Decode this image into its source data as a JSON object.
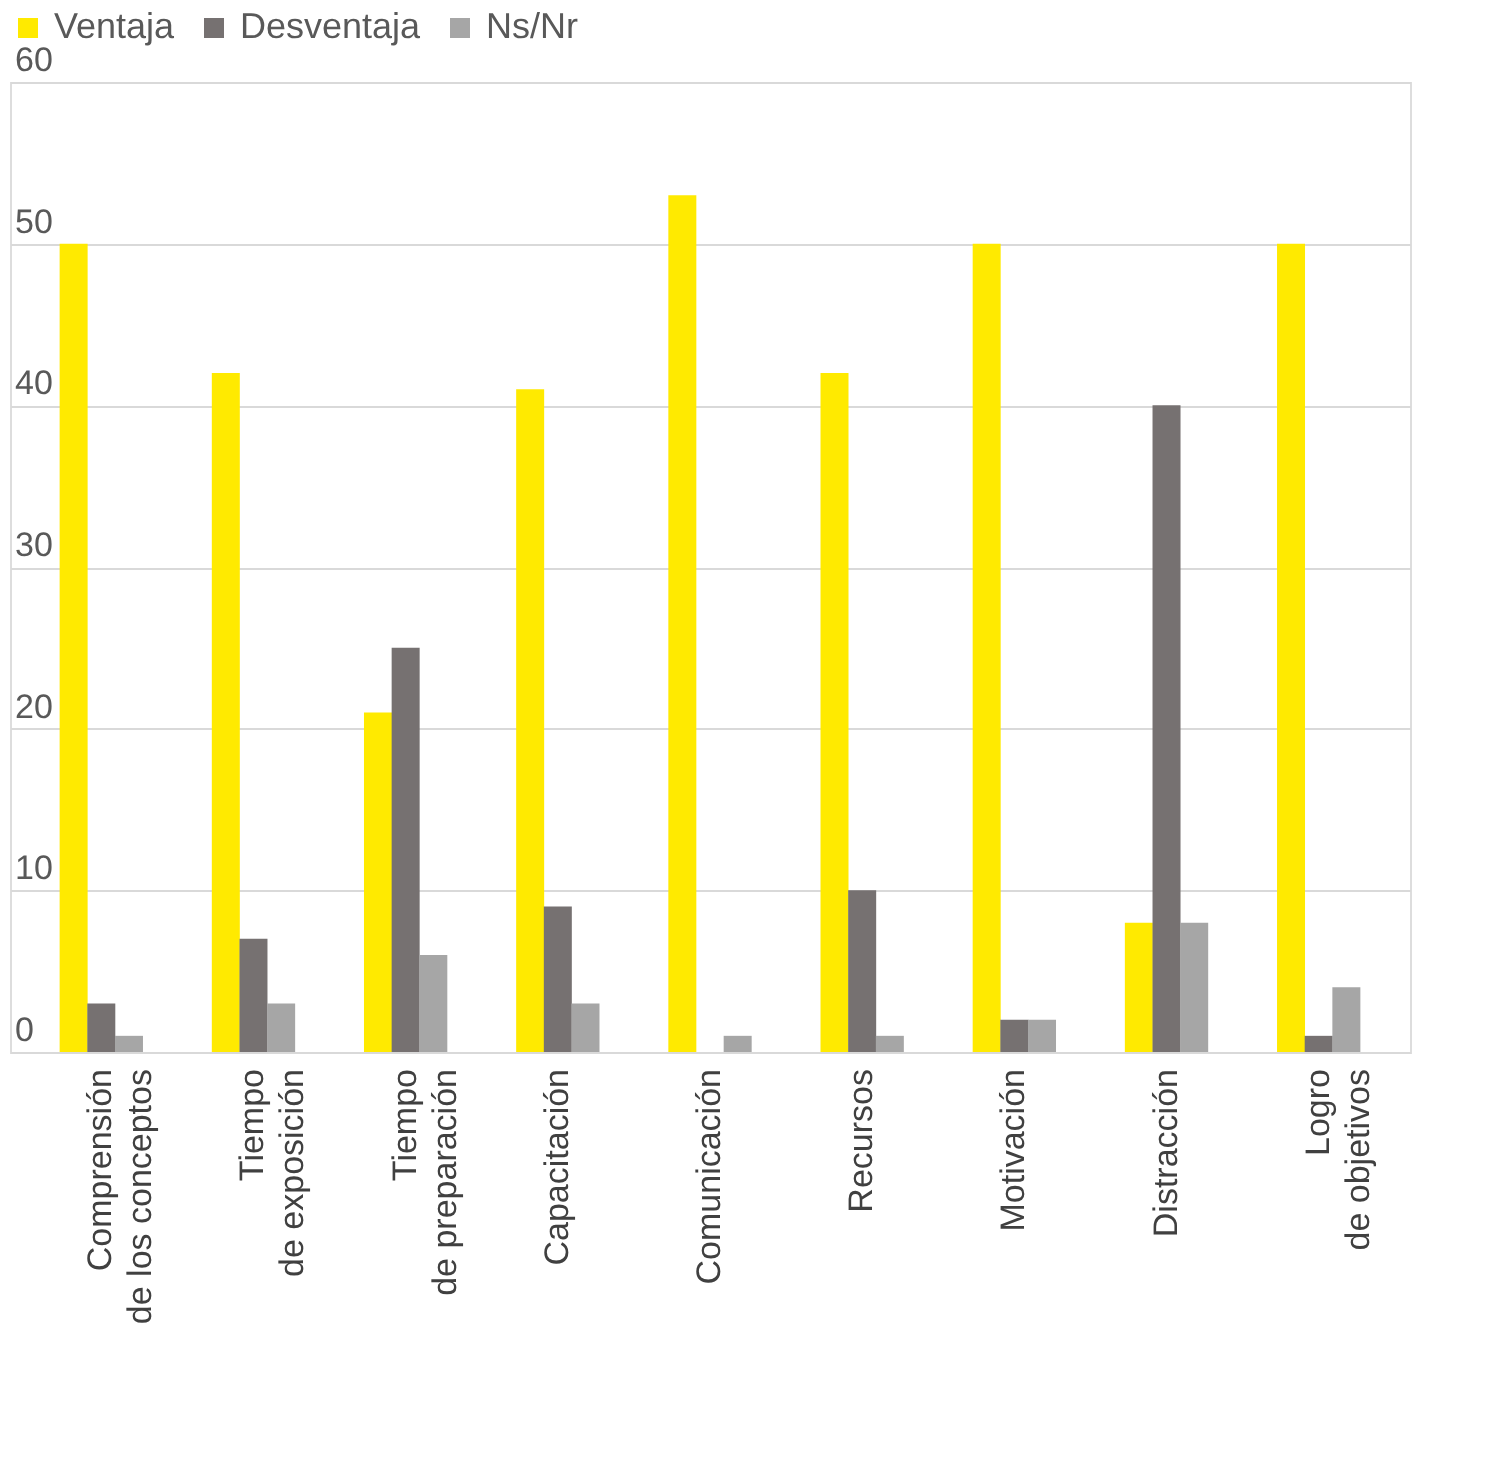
{
  "chart_data": {
    "type": "bar",
    "categories": [
      "Comprensión\nde los conceptos",
      "Tiempo\nde exposición",
      "Tiempo\nde preparación",
      "Capacitación",
      "Comunicación",
      "Recursos",
      "Motivación",
      "Distracción",
      "Logro\nde objetivos"
    ],
    "series": [
      {
        "name": "Ventaja",
        "color": "#ffea00",
        "values": [
          50,
          42,
          21,
          41,
          53,
          42,
          50,
          8,
          50
        ]
      },
      {
        "name": "Desventaja",
        "color": "#767171",
        "values": [
          3,
          7,
          25,
          9,
          0,
          10,
          2,
          40,
          1
        ]
      },
      {
        "name": "Ns/Nr",
        "color": "#a6a6a6",
        "values": [
          1,
          3,
          6,
          3,
          1,
          1,
          2,
          8,
          4
        ]
      }
    ],
    "ylim": [
      0,
      60
    ],
    "yticks": [
      0,
      10,
      20,
      30,
      40,
      50,
      60
    ],
    "grid": "y",
    "legend": "top"
  }
}
